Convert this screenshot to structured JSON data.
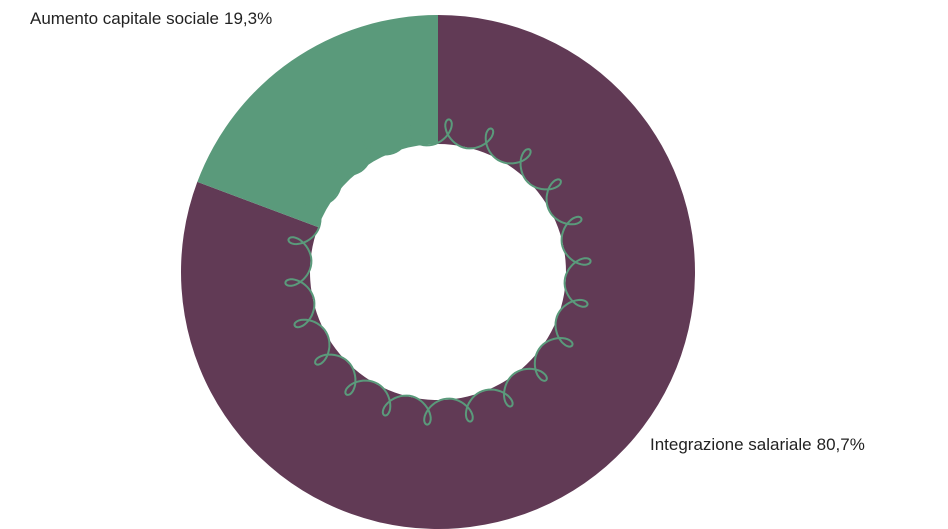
{
  "chart_data": {
    "type": "donut",
    "categories": [
      "Integrazione salariale",
      "Aumento capitale sociale"
    ],
    "values": [
      80.7,
      19.3
    ],
    "value_labels": [
      "80,7%",
      "19,3%"
    ],
    "colors": [
      "#613a55",
      "#5a9a7b"
    ]
  }
}
